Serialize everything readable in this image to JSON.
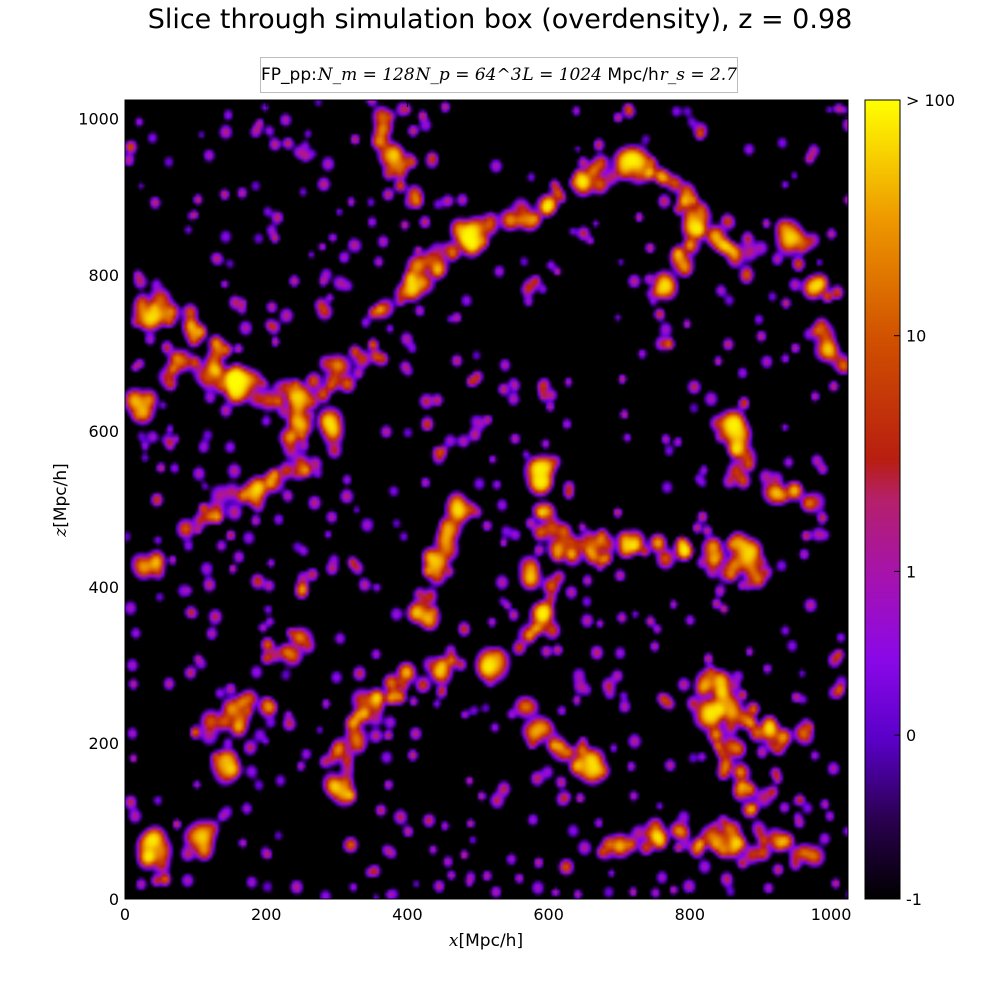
{
  "chart_data": {
    "type": "heatmap",
    "title": "Slice through simulation box (overdensity), z = 0.98",
    "subtitle": {
      "prefix": "FP_pp:",
      "n_m": "N_m = 128",
      "n_p": "N_p = 64^3",
      "l": "L = 1024",
      "l_unit": "Mpc/h",
      "r_s": "r_s = 2.7"
    },
    "xlabel": {
      "var": "x",
      "unit": "[Mpc/h]"
    },
    "ylabel": {
      "var": "z",
      "unit": "[Mpc/h]"
    },
    "xlim": [
      0,
      1024
    ],
    "ylim": [
      0,
      1024
    ],
    "xticks": [
      0,
      200,
      400,
      600,
      800,
      1000
    ],
    "yticks": [
      0,
      200,
      400,
      600,
      800,
      1000
    ],
    "colorbar": {
      "colormap": "gnuplot",
      "ticks": [
        {
          "label": "-1",
          "frac": 0.0
        },
        {
          "label": "0",
          "frac": 0.205
        },
        {
          "label": "1",
          "frac": 0.41
        },
        {
          "label": "10",
          "frac": 0.705
        },
        {
          "label": "> 100",
          "frac": 1.0
        }
      ],
      "stops": [
        {
          "frac": 0.0,
          "color": "#000000"
        },
        {
          "frac": 0.1,
          "color": "#2a0050"
        },
        {
          "frac": 0.2,
          "color": "#5a00c8"
        },
        {
          "frac": 0.3,
          "color": "#8a08e8"
        },
        {
          "frac": 0.4,
          "color": "#a512b0"
        },
        {
          "frac": 0.5,
          "color": "#b5206a"
        },
        {
          "frac": 0.55,
          "color": "#b81e10"
        },
        {
          "frac": 0.7,
          "color": "#d05000"
        },
        {
          "frac": 0.85,
          "color": "#ee9800"
        },
        {
          "frac": 1.0,
          "color": "#ffff00"
        }
      ]
    },
    "density_field": {
      "description_free": true,
      "filaments": [
        [
          [
            150,
            660
          ],
          [
            250,
            640
          ],
          [
            350,
            700
          ]
        ],
        [
          [
            150,
            660
          ],
          [
            110,
            720
          ],
          [
            40,
            760
          ]
        ],
        [
          [
            150,
            660
          ],
          [
            60,
            680
          ]
        ],
        [
          [
            250,
            640
          ],
          [
            240,
            560
          ],
          [
            180,
            520
          ],
          [
            90,
            480
          ]
        ],
        [
          [
            380,
            770
          ],
          [
            450,
            830
          ],
          [
            500,
            850
          ],
          [
            580,
            880
          ],
          [
            640,
            920
          ],
          [
            720,
            940
          ]
        ],
        [
          [
            720,
            940
          ],
          [
            800,
            880
          ],
          [
            850,
            840
          ],
          [
            880,
            820
          ]
        ],
        [
          [
            800,
            880
          ],
          [
            780,
            820
          ],
          [
            760,
            760
          ]
        ],
        [
          [
            350,
            1000
          ],
          [
            380,
            950
          ],
          [
            400,
            900
          ]
        ],
        [
          [
            590,
            540
          ],
          [
            600,
            480
          ],
          [
            640,
            440
          ],
          [
            720,
            450
          ]
        ],
        [
          [
            720,
            450
          ],
          [
            850,
            440
          ],
          [
            890,
            400
          ]
        ],
        [
          [
            860,
            620
          ],
          [
            870,
            540
          ]
        ],
        [
          [
            300,
            170
          ],
          [
            330,
            220
          ],
          [
            360,
            260
          ],
          [
            410,
            280
          ],
          [
            470,
            300
          ]
        ],
        [
          [
            560,
            240
          ],
          [
            620,
            180
          ],
          [
            660,
            170
          ]
        ],
        [
          [
            110,
            210
          ],
          [
            150,
            230
          ],
          [
            200,
            250
          ]
        ],
        [
          [
            840,
            260
          ],
          [
            880,
            230
          ],
          [
            960,
            200
          ]
        ],
        [
          [
            820,
            300
          ],
          [
            860,
            160
          ],
          [
            900,
            100
          ]
        ],
        [
          [
            660,
            60
          ],
          [
            760,
            80
          ],
          [
            860,
            70
          ],
          [
            980,
            60
          ]
        ],
        [
          [
            20,
            60
          ],
          [
            60,
            20
          ]
        ],
        [
          [
            570,
            440
          ],
          [
            600,
            360
          ],
          [
            560,
            320
          ]
        ],
        [
          [
            420,
            350
          ],
          [
            430,
            420
          ],
          [
            470,
            480
          ]
        ],
        [
          [
            200,
            310
          ],
          [
            260,
            330
          ]
        ],
        [
          [
            940,
            800
          ],
          [
            1000,
            760
          ]
        ],
        [
          [
            980,
            720
          ],
          [
            1020,
            680
          ]
        ],
        [
          [
            920,
            520
          ],
          [
            980,
            500
          ]
        ]
      ],
      "peaks": [
        [
          165,
          655,
          1.0
        ],
        [
          290,
          600,
          0.8
        ],
        [
          590,
          545,
          1.0
        ],
        [
          665,
          170,
          1.0
        ],
        [
          720,
          940,
          0.95
        ],
        [
          875,
          445,
          0.9
        ],
        [
          40,
          65,
          0.9
        ],
        [
          300,
          140,
          0.85
        ],
        [
          415,
          780,
          0.85
        ],
        [
          140,
          170,
          0.8
        ],
        [
          860,
          600,
          0.85
        ],
        [
          480,
          500,
          0.7
        ],
        [
          100,
          70,
          0.7
        ],
        [
          830,
          240,
          0.8
        ],
        [
          520,
          300,
          0.75
        ],
        [
          20,
          630,
          0.75
        ],
        [
          30,
          430,
          0.7
        ],
        [
          30,
          750,
          0.75
        ],
        [
          950,
          850,
          0.7
        ],
        [
          490,
          840,
          0.75
        ]
      ]
    }
  }
}
